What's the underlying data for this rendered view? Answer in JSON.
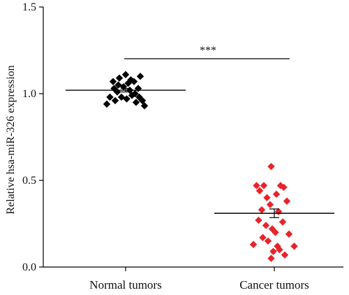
{
  "chart_data": {
    "type": "scatter",
    "ylabel": "Relative hsa-miR-326 expression",
    "xlabel": "",
    "ylim": [
      0,
      1.5
    ],
    "yticks": [
      0.0,
      0.5,
      1.0,
      1.5
    ],
    "ytick_labels": [
      "0.0",
      "0.5",
      "1.0",
      "1.5"
    ],
    "categories": [
      "Normal tumors",
      "Cancer tumors"
    ],
    "significance": "***",
    "grid": false,
    "series": [
      {
        "category": "Normal tumors",
        "color": "#000000",
        "marker": "diamond",
        "mean": 1.02,
        "sem": 0.01,
        "points": [
          {
            "j": -0.9,
            "y": 0.94
          },
          {
            "j": -0.75,
            "y": 0.98
          },
          {
            "j": -0.6,
            "y": 1.07
          },
          {
            "j": -0.5,
            "y": 0.96
          },
          {
            "j": -0.4,
            "y": 1.01
          },
          {
            "j": -0.3,
            "y": 1.09
          },
          {
            "j": -0.2,
            "y": 0.98
          },
          {
            "j": -0.1,
            "y": 1.04
          },
          {
            "j": 0.0,
            "y": 1.11
          },
          {
            "j": 0.05,
            "y": 0.97
          },
          {
            "j": 0.12,
            "y": 1.06
          },
          {
            "j": 0.2,
            "y": 1.02
          },
          {
            "j": 0.3,
            "y": 0.99
          },
          {
            "j": 0.4,
            "y": 1.07
          },
          {
            "j": 0.5,
            "y": 0.95
          },
          {
            "j": 0.6,
            "y": 1.03
          },
          {
            "j": 0.7,
            "y": 1.1
          },
          {
            "j": 0.8,
            "y": 0.96
          },
          {
            "j": 0.9,
            "y": 0.93
          },
          {
            "j": -0.35,
            "y": 1.05
          },
          {
            "j": 0.25,
            "y": 1.08
          },
          {
            "j": -0.55,
            "y": 1.03
          },
          {
            "j": 0.45,
            "y": 1.0
          },
          {
            "j": 0.65,
            "y": 0.98
          }
        ]
      },
      {
        "category": "Cancer tumors",
        "color": "#e8232a",
        "marker": "diamond",
        "mean": 0.31,
        "sem": 0.025,
        "points": [
          {
            "j": -0.15,
            "y": 0.58
          },
          {
            "j": -0.85,
            "y": 0.47
          },
          {
            "j": -0.7,
            "y": 0.44
          },
          {
            "j": -0.5,
            "y": 0.47
          },
          {
            "j": 0.3,
            "y": 0.47
          },
          {
            "j": 0.45,
            "y": 0.46
          },
          {
            "j": 0.1,
            "y": 0.42
          },
          {
            "j": -0.35,
            "y": 0.4
          },
          {
            "j": 0.6,
            "y": 0.38
          },
          {
            "j": -0.2,
            "y": 0.36
          },
          {
            "j": -0.6,
            "y": 0.33
          },
          {
            "j": 0.2,
            "y": 0.32
          },
          {
            "j": 0.4,
            "y": 0.26
          },
          {
            "j": -0.4,
            "y": 0.24
          },
          {
            "j": -0.1,
            "y": 0.22
          },
          {
            "j": 0.05,
            "y": 0.2
          },
          {
            "j": -0.55,
            "y": 0.17
          },
          {
            "j": -1.0,
            "y": 0.13
          },
          {
            "j": 0.95,
            "y": 0.12
          },
          {
            "j": -0.3,
            "y": 0.15
          },
          {
            "j": 0.25,
            "y": 0.1
          },
          {
            "j": -0.05,
            "y": 0.09
          },
          {
            "j": 0.5,
            "y": 0.07
          },
          {
            "j": -0.15,
            "y": 0.05
          },
          {
            "j": 0.15,
            "y": 0.12
          },
          {
            "j": -0.75,
            "y": 0.27
          },
          {
            "j": 0.7,
            "y": 0.19
          }
        ]
      }
    ]
  }
}
